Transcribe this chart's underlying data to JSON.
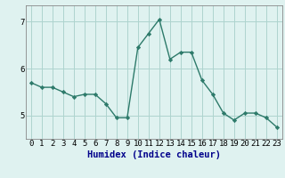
{
  "x": [
    0,
    1,
    2,
    3,
    4,
    5,
    6,
    7,
    8,
    9,
    10,
    11,
    12,
    13,
    14,
    15,
    16,
    17,
    18,
    19,
    20,
    21,
    22,
    23
  ],
  "y": [
    5.7,
    5.6,
    5.6,
    5.5,
    5.4,
    5.45,
    5.45,
    5.25,
    4.95,
    4.95,
    6.45,
    6.75,
    7.05,
    6.2,
    6.35,
    6.35,
    5.75,
    5.45,
    5.05,
    4.9,
    5.05,
    5.05,
    4.95,
    4.75
  ],
  "line_color": "#2d7a6a",
  "marker": "D",
  "marker_size": 2.2,
  "bg_color": "#dff2f0",
  "grid_color": "#aed4ce",
  "xlabel": "Humidex (Indice chaleur)",
  "xlabel_fontsize": 7.5,
  "tick_fontsize": 6.5,
  "ylim": [
    4.5,
    7.35
  ],
  "xlim": [
    -0.5,
    23.5
  ],
  "yticks": [
    5,
    6,
    7
  ],
  "xlabel_color": "#00008b"
}
